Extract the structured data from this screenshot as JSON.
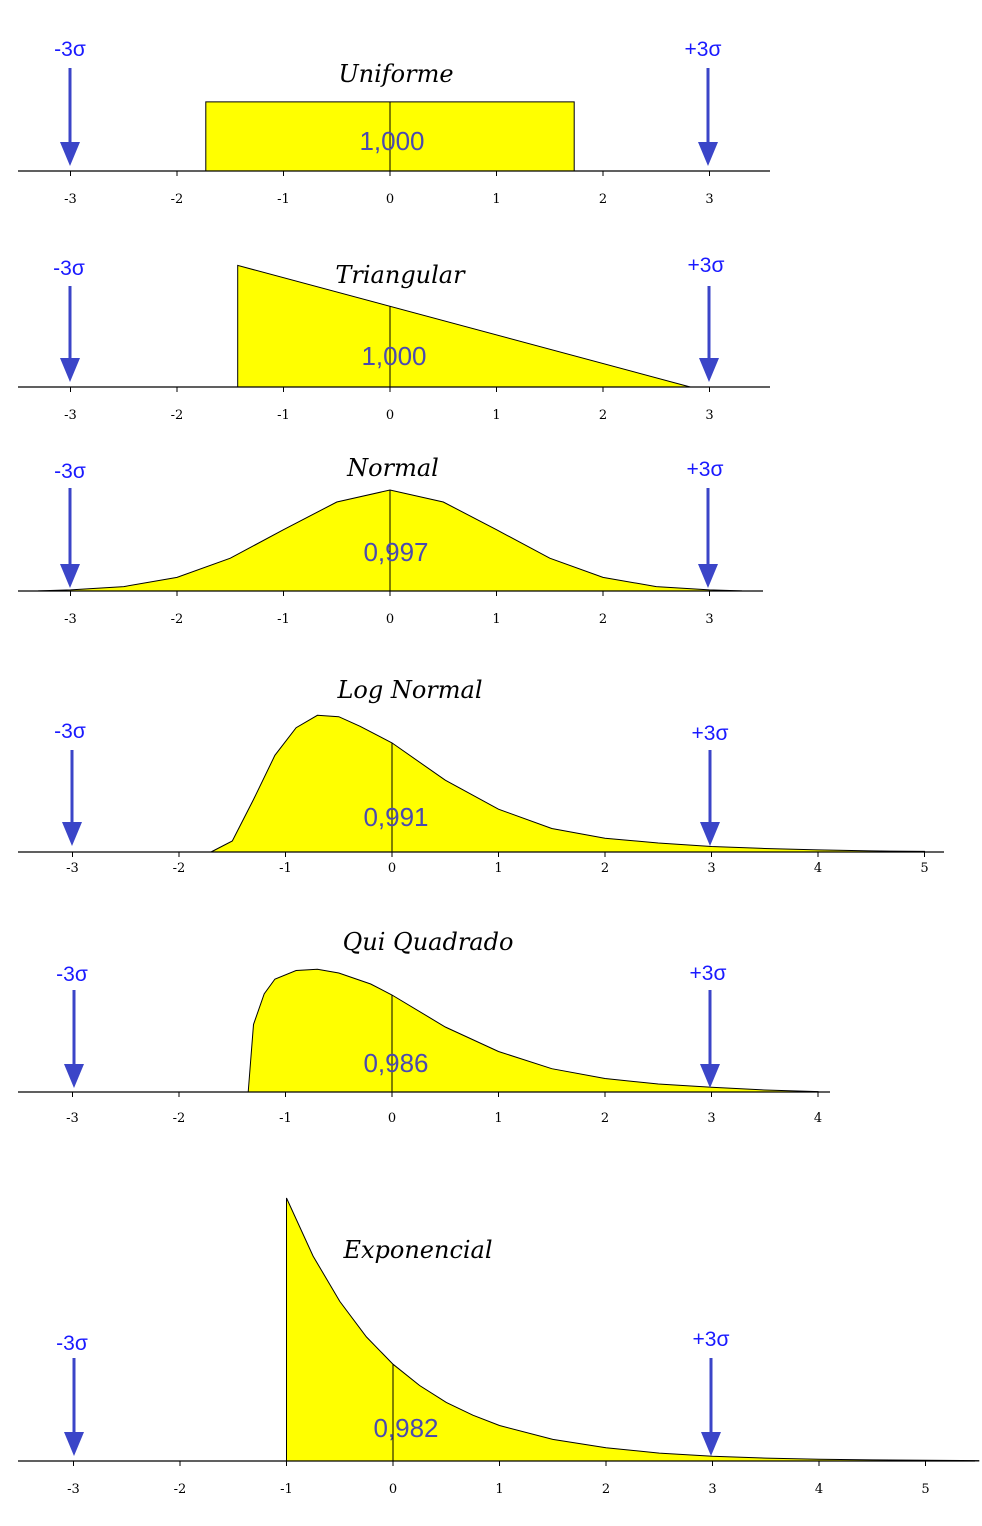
{
  "colors": {
    "fill": "#ffff00",
    "arrow": "#3b45c8",
    "value_text": "#4a4ab0",
    "sigma_text": "#1a1aff"
  },
  "sigma_labels": {
    "minus": "-3σ",
    "plus": "+3σ"
  },
  "chart_data": [
    {
      "type": "area",
      "title": "Uniforme",
      "value_label": "1,000",
      "xticks": [
        "-3",
        "-2",
        "-1",
        "0",
        "1",
        "2",
        "3"
      ],
      "x": [
        -1.73,
        -1.73,
        1.73,
        1.73
      ],
      "y": [
        0,
        1,
        1,
        0
      ],
      "ylim": [
        0,
        1.1
      ]
    },
    {
      "type": "area",
      "title": "Triangular",
      "value_label": "1,000",
      "xticks": [
        "-3",
        "-2",
        "-1",
        "0",
        "1",
        "2",
        "3"
      ],
      "x": [
        -1.43,
        -1.43,
        2.82
      ],
      "y": [
        0,
        1,
        0
      ],
      "ylim": [
        0,
        1.02
      ]
    },
    {
      "type": "area",
      "title": "Normal",
      "value_label": "0,997",
      "xticks": [
        "-3",
        "-2",
        "-1",
        "0",
        "1",
        "2",
        "3"
      ],
      "x": [
        -3.3,
        -3.0,
        -2.5,
        -2.0,
        -1.5,
        -1.0,
        -0.5,
        0,
        0.5,
        1.0,
        1.5,
        2.0,
        2.5,
        3.0,
        3.3
      ],
      "y": [
        0.002,
        0.011,
        0.044,
        0.135,
        0.325,
        0.607,
        0.882,
        1.0,
        0.882,
        0.607,
        0.325,
        0.135,
        0.044,
        0.011,
        0.002
      ],
      "ylim": [
        0,
        1.05
      ]
    },
    {
      "type": "area",
      "title": "Log Normal",
      "value_label": "0,991",
      "xticks": [
        "-3",
        "-2",
        "-1",
        "0",
        "1",
        "2",
        "3",
        "4",
        "5"
      ],
      "x": [
        -1.7,
        -1.5,
        -1.3,
        -1.1,
        -0.9,
        -0.7,
        -0.5,
        -0.3,
        0,
        0.5,
        1.0,
        1.5,
        2.0,
        2.5,
        3.0,
        3.5,
        4.0,
        4.5,
        5.0
      ],
      "y": [
        0,
        0.08,
        0.38,
        0.7,
        0.9,
        0.99,
        0.98,
        0.91,
        0.79,
        0.52,
        0.31,
        0.17,
        0.1,
        0.065,
        0.04,
        0.025,
        0.015,
        0.008,
        0.004
      ],
      "ylim": [
        0,
        1.05
      ]
    },
    {
      "type": "area",
      "title": "Qui Quadrado",
      "value_label": "0,986",
      "xticks": [
        "-3",
        "-2",
        "-1",
        "0",
        "1",
        "2",
        "3",
        "4"
      ],
      "x": [
        -1.35,
        -1.3,
        -1.2,
        -1.1,
        -0.9,
        -0.7,
        -0.5,
        -0.2,
        0,
        0.5,
        1.0,
        1.5,
        2.0,
        2.5,
        3.0,
        3.5,
        4.0
      ],
      "y": [
        0,
        0.55,
        0.8,
        0.92,
        0.99,
        1.0,
        0.97,
        0.88,
        0.79,
        0.53,
        0.33,
        0.19,
        0.11,
        0.065,
        0.038,
        0.016,
        0.003
      ],
      "ylim": [
        0,
        1.1
      ]
    },
    {
      "type": "area",
      "title": "Exponencial",
      "value_label": "0,982",
      "xticks": [
        "-3",
        "-2",
        "-1",
        "0",
        "1",
        "2",
        "3",
        "4",
        "5"
      ],
      "x": [
        -1.0,
        -1.0,
        -0.75,
        -0.5,
        -0.25,
        0,
        0.25,
        0.5,
        0.75,
        1.0,
        1.5,
        2.0,
        2.5,
        3.0,
        3.5,
        4.0,
        4.5,
        5.0,
        5.5
      ],
      "y": [
        0,
        1.0,
        0.779,
        0.607,
        0.472,
        0.368,
        0.287,
        0.223,
        0.174,
        0.135,
        0.082,
        0.05,
        0.03,
        0.018,
        0.011,
        0.0067,
        0.0041,
        0.0025,
        0.0015
      ],
      "ylim": [
        0,
        1.0
      ]
    }
  ]
}
